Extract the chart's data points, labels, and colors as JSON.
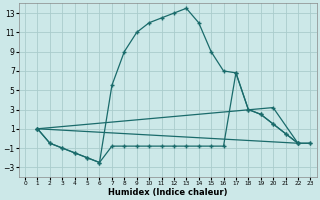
{
  "xlabel": "Humidex (Indice chaleur)",
  "bg_color": "#cce8e8",
  "grid_color": "#aacccc",
  "line_color": "#1a6b6b",
  "xlim": [
    -0.5,
    23.5
  ],
  "ylim": [
    -4,
    14
  ],
  "yticks": [
    -3,
    -1,
    1,
    3,
    5,
    7,
    9,
    11,
    13
  ],
  "xticks": [
    0,
    1,
    2,
    3,
    4,
    5,
    6,
    7,
    8,
    9,
    10,
    11,
    12,
    13,
    14,
    15,
    16,
    17,
    18,
    19,
    20,
    21,
    22,
    23
  ],
  "line1_x": [
    1,
    2,
    3,
    4,
    5,
    6,
    7,
    8,
    9,
    10,
    11,
    12,
    13,
    14,
    15,
    16,
    17,
    18,
    19,
    20,
    21,
    22,
    23
  ],
  "line1_y": [
    1,
    -0.5,
    -1,
    -1.5,
    -2,
    -2.5,
    5.5,
    9,
    11,
    12,
    12.5,
    13,
    13.5,
    12,
    9,
    7,
    6.8,
    3,
    2.5,
    1.5,
    0.5,
    -0.5,
    -0.5
  ],
  "line2_x": [
    1,
    2,
    3,
    4,
    5,
    6,
    7,
    8,
    9,
    10,
    11,
    12,
    13,
    14,
    15,
    16,
    17,
    18,
    19,
    20,
    21,
    22,
    23
  ],
  "line2_y": [
    1,
    -0.5,
    -1,
    -1.5,
    -2,
    -2.5,
    -0.8,
    -0.8,
    -0.8,
    -0.8,
    -0.8,
    -0.8,
    -0.8,
    -0.8,
    -0.8,
    -0.8,
    6.8,
    3,
    2.5,
    1.5,
    0.5,
    -0.5,
    -0.5
  ],
  "line3_x": [
    1,
    22
  ],
  "line3_y": [
    1,
    -0.5
  ],
  "line4_x": [
    1,
    20,
    22
  ],
  "line4_y": [
    1,
    3.2,
    -0.5
  ]
}
